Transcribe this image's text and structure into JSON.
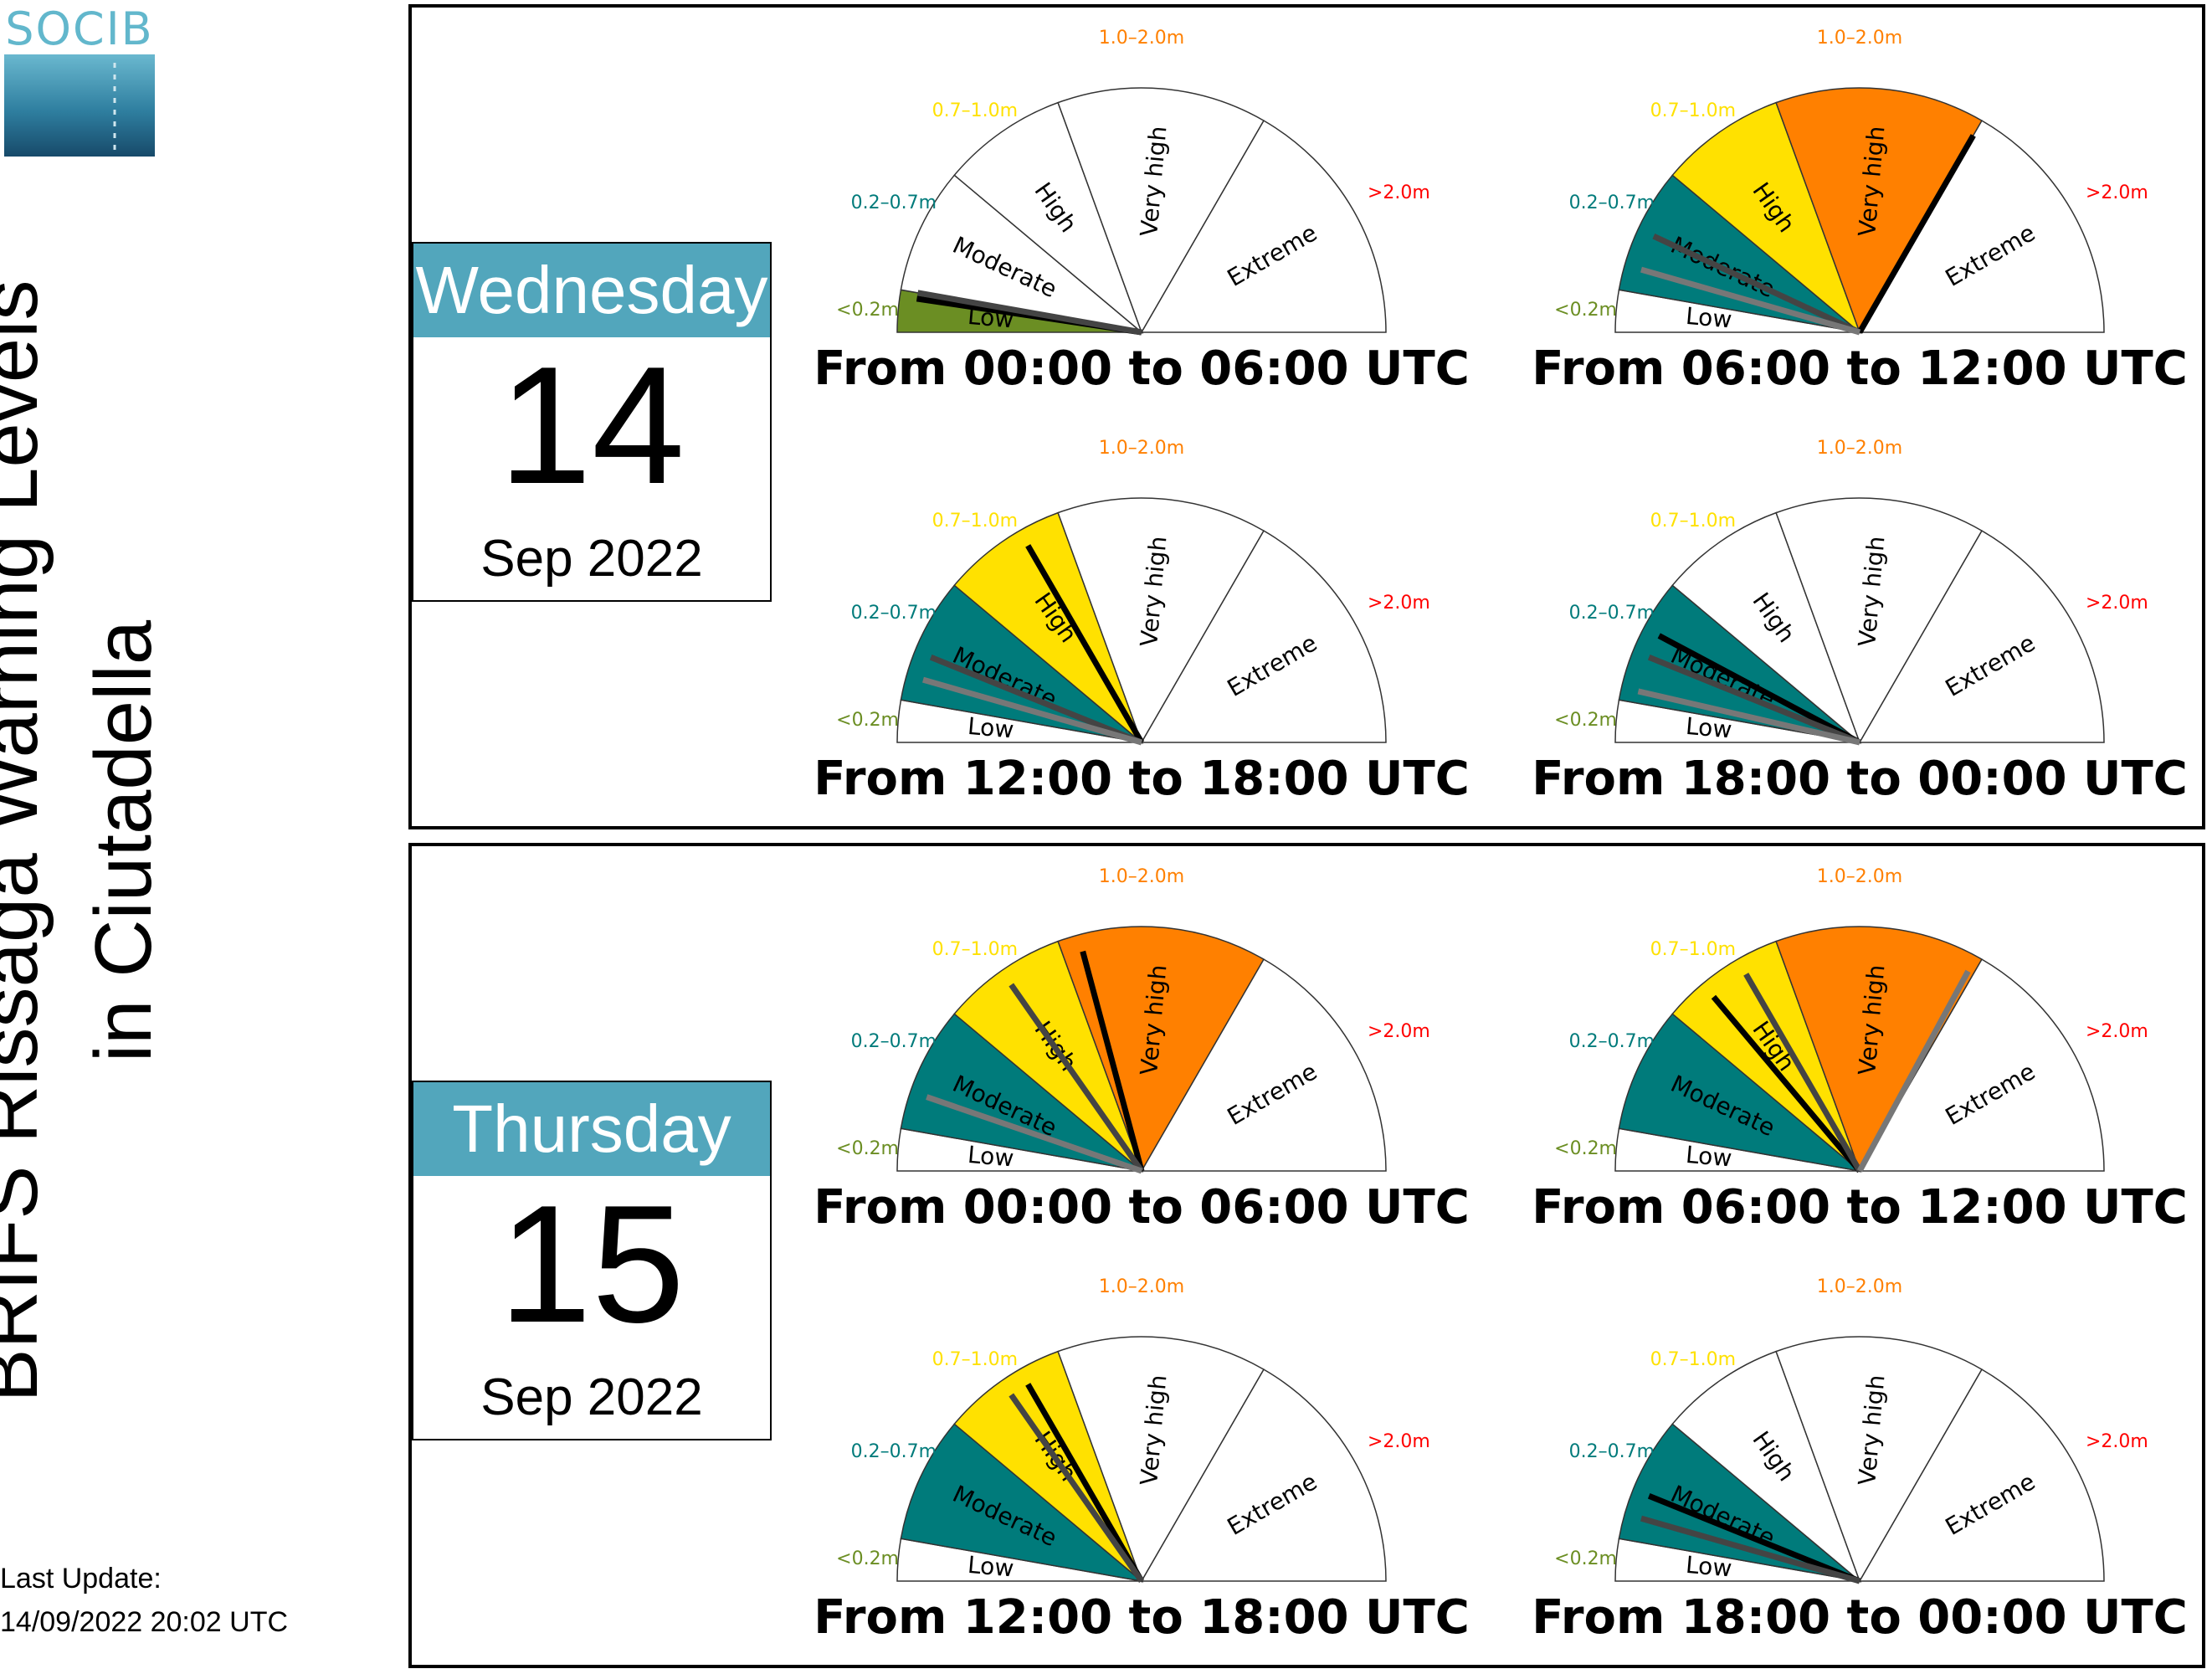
{
  "logo": {
    "text": "SOCIB"
  },
  "title": {
    "line1": "BRIFS Rissaga Warning Levels",
    "line2": "in Ciutadella"
  },
  "last_update": {
    "label": "Last Update:",
    "value": "14/09/2022 20:02 UTC"
  },
  "colors": {
    "accent": "#52a6bc",
    "low": "#6b8e23",
    "moderate": "#007b7b",
    "high": "#ffe100",
    "very_high": "#ff8000",
    "extreme": "#ff0000",
    "needle_primary": "#000000",
    "needle_secondary": "#444444",
    "needle_tertiary": "#777777"
  },
  "chart_data": {
    "type": "gauge",
    "categories": [
      "Low",
      "Moderate",
      "High",
      "Very high",
      "Extreme"
    ],
    "thresholds": [
      "<0.2m",
      "0.2–0.7m",
      "0.7–1.0m",
      "1.0–2.0m",
      ">2.0m"
    ],
    "days": [
      {
        "weekday": "Wednesday",
        "day": "14",
        "month_year": "Sep 2022",
        "periods": [
          {
            "label": "From 00:00 to 06:00 UTC",
            "level": "Low",
            "needles": [
              0.17,
              0.2
            ]
          },
          {
            "label": "From 06:00 to 12:00 UTC",
            "level": "Very high",
            "needles": [
              2.0,
              0.45,
              0.3
            ]
          },
          {
            "label": "From 12:00 to 18:00 UTC",
            "level": "High",
            "needles": [
              0.9,
              0.4,
              0.3
            ]
          },
          {
            "label": "From 18:00 to 00:00 UTC",
            "level": "Moderate",
            "needles": [
              0.5,
              0.4,
              0.25
            ]
          }
        ]
      },
      {
        "weekday": "Thursday",
        "day": "15",
        "month_year": "Sep 2022",
        "periods": [
          {
            "label": "From 00:00 to 06:00 UTC",
            "level": "Very high",
            "needles": [
              1.1,
              0.85,
              0.35
            ]
          },
          {
            "label": "From 06:00 to 12:00 UTC",
            "level": "Very high",
            "needles": [
              0.8,
              0.9,
              1.97
            ]
          },
          {
            "label": "From 12:00 to 18:00 UTC",
            "level": "High",
            "needles": [
              0.9,
              0.85
            ]
          },
          {
            "label": "From 18:00 to 00:00 UTC",
            "level": "Moderate",
            "needles": [
              0.4,
              0.3
            ]
          }
        ]
      }
    ]
  }
}
